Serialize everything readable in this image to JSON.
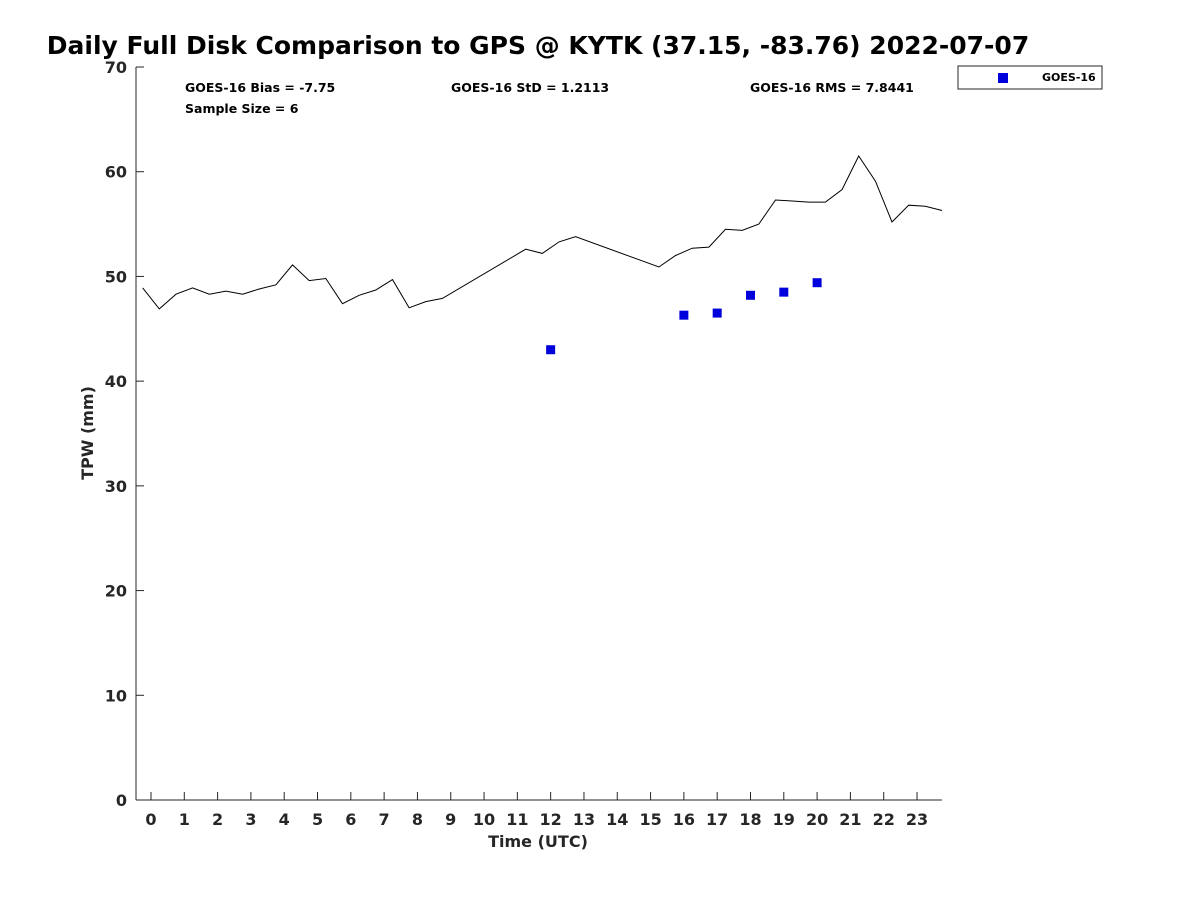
{
  "chart_data": {
    "type": "scatter",
    "title": "Daily Full Disk Comparison to GPS @ KYTK (37.15, -83.76) 2022-07-07",
    "xlabel": "Time (UTC)",
    "ylabel": "TPW (mm)",
    "xlim": [
      -0.45,
      23.75
    ],
    "ylim": [
      0,
      70
    ],
    "x_ticks": [
      0,
      1,
      2,
      3,
      4,
      5,
      6,
      7,
      8,
      9,
      10,
      11,
      12,
      13,
      14,
      15,
      16,
      17,
      18,
      19,
      20,
      21,
      22,
      23
    ],
    "x_tick_labels": [
      "0",
      "1",
      "2",
      "3",
      "4",
      "5",
      "6",
      "7",
      "8",
      "9",
      "10",
      "11",
      "12",
      "13",
      "14",
      "15",
      "16",
      "17",
      "18",
      "19",
      "20",
      "21",
      "22",
      "23"
    ],
    "y_ticks": [
      0,
      10,
      20,
      30,
      40,
      50,
      60,
      70
    ],
    "y_tick_labels": [
      "0",
      "10",
      "20",
      "30",
      "40",
      "50",
      "60",
      "70"
    ],
    "grid": false,
    "legend_position": "outside-top-right",
    "stats": {
      "bias": "GOES-16 Bias = -7.75",
      "std": "GOES-16 StD = 1.2113",
      "rms": "GOES-16 RMS = 7.8441",
      "sample_size": "Sample Size = 6"
    },
    "series": [
      {
        "kind": "line",
        "color": "#000000",
        "x": [
          -0.25,
          0.25,
          0.75,
          1.25,
          1.75,
          2.25,
          2.75,
          3.25,
          3.75,
          4.25,
          4.75,
          5.25,
          5.75,
          6.25,
          6.75,
          7.25,
          7.75,
          8.25,
          8.75,
          11.25,
          11.75,
          12.25,
          12.75,
          15.25,
          15.75,
          16.25,
          16.75,
          17.25,
          17.75,
          18.25,
          18.75,
          19.25,
          19.75,
          20.25,
          20.75,
          21.25,
          21.75,
          22.25,
          22.75,
          23.25,
          23.75
        ],
        "y": [
          48.9,
          46.9,
          48.3,
          48.9,
          48.3,
          48.6,
          48.3,
          48.8,
          49.2,
          51.1,
          49.6,
          49.8,
          47.4,
          48.2,
          48.7,
          49.7,
          47.0,
          47.6,
          47.9,
          52.6,
          52.2,
          53.3,
          53.8,
          50.9,
          52.0,
          52.7,
          52.8,
          54.5,
          54.4,
          55.0,
          57.3,
          57.2,
          57.1,
          57.1,
          58.3,
          61.5,
          59.1,
          55.2,
          56.8,
          56.7,
          56.3
        ]
      },
      {
        "kind": "scatter",
        "name": "GOES-16",
        "color": "#0000dd",
        "marker": "square",
        "x": [
          12,
          16,
          17,
          18,
          19,
          20
        ],
        "y": [
          43.0,
          46.3,
          46.5,
          48.2,
          48.5,
          49.4
        ]
      }
    ]
  }
}
